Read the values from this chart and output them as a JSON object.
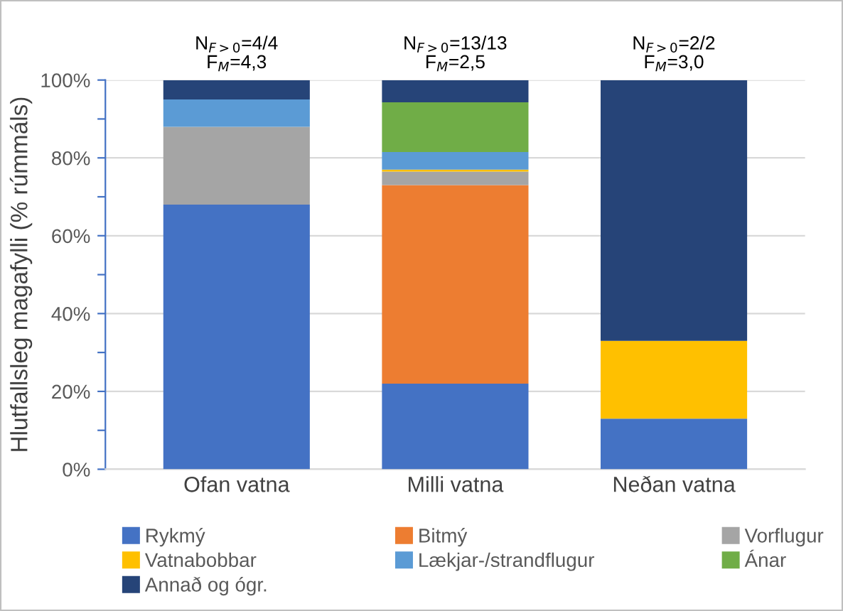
{
  "chart_data": {
    "type": "bar",
    "stacked": true,
    "ylabel": "Hlutfallsleg magafylli (% rúmmáls)",
    "categories": [
      "Ofan vatna",
      "Milli vatna",
      "Neðan vatna"
    ],
    "series": [
      {
        "name": "Rykmý",
        "color": "#4472c4",
        "values": [
          68,
          22,
          13
        ]
      },
      {
        "name": "Bitmý",
        "color": "#ed7d31",
        "values": [
          0,
          51,
          0
        ]
      },
      {
        "name": "Vorflugur",
        "color": "#a5a5a5",
        "values": [
          20,
          3.5,
          0
        ]
      },
      {
        "name": "Vatnabobbar",
        "color": "#ffc000",
        "values": [
          0,
          0.5,
          20
        ]
      },
      {
        "name": "Lækjar-/strandflugur",
        "color": "#5b9bd5",
        "values": [
          7,
          4.5,
          0
        ]
      },
      {
        "name": "Ánar",
        "color": "#70ad47",
        "values": [
          0,
          12.8,
          0
        ]
      },
      {
        "name": "Annað og ógr.",
        "color": "#264478",
        "values": [
          5,
          5.7,
          67
        ]
      }
    ],
    "ylim": [
      0,
      100
    ],
    "yticks": [
      {
        "value": 0,
        "label": "0%"
      },
      {
        "value": 10,
        "label": null
      },
      {
        "value": 20,
        "label": "20%"
      },
      {
        "value": 30,
        "label": null
      },
      {
        "value": 40,
        "label": "40%"
      },
      {
        "value": 50,
        "label": null
      },
      {
        "value": 60,
        "label": "60%"
      },
      {
        "value": 70,
        "label": null
      },
      {
        "value": 80,
        "label": "80%"
      },
      {
        "value": 90,
        "label": null
      },
      {
        "value": 100,
        "label": "100%"
      }
    ],
    "grid": "y",
    "legend": "bottom",
    "annotations": [
      "N$_{F>0}$=4/4\nF$_{M}$=4,3",
      "N$_{F>0}$=13/13\nF$_{M}$=2,5",
      "N$_{F>0}$=2/2\nF$_{M}$=3,0"
    ]
  }
}
